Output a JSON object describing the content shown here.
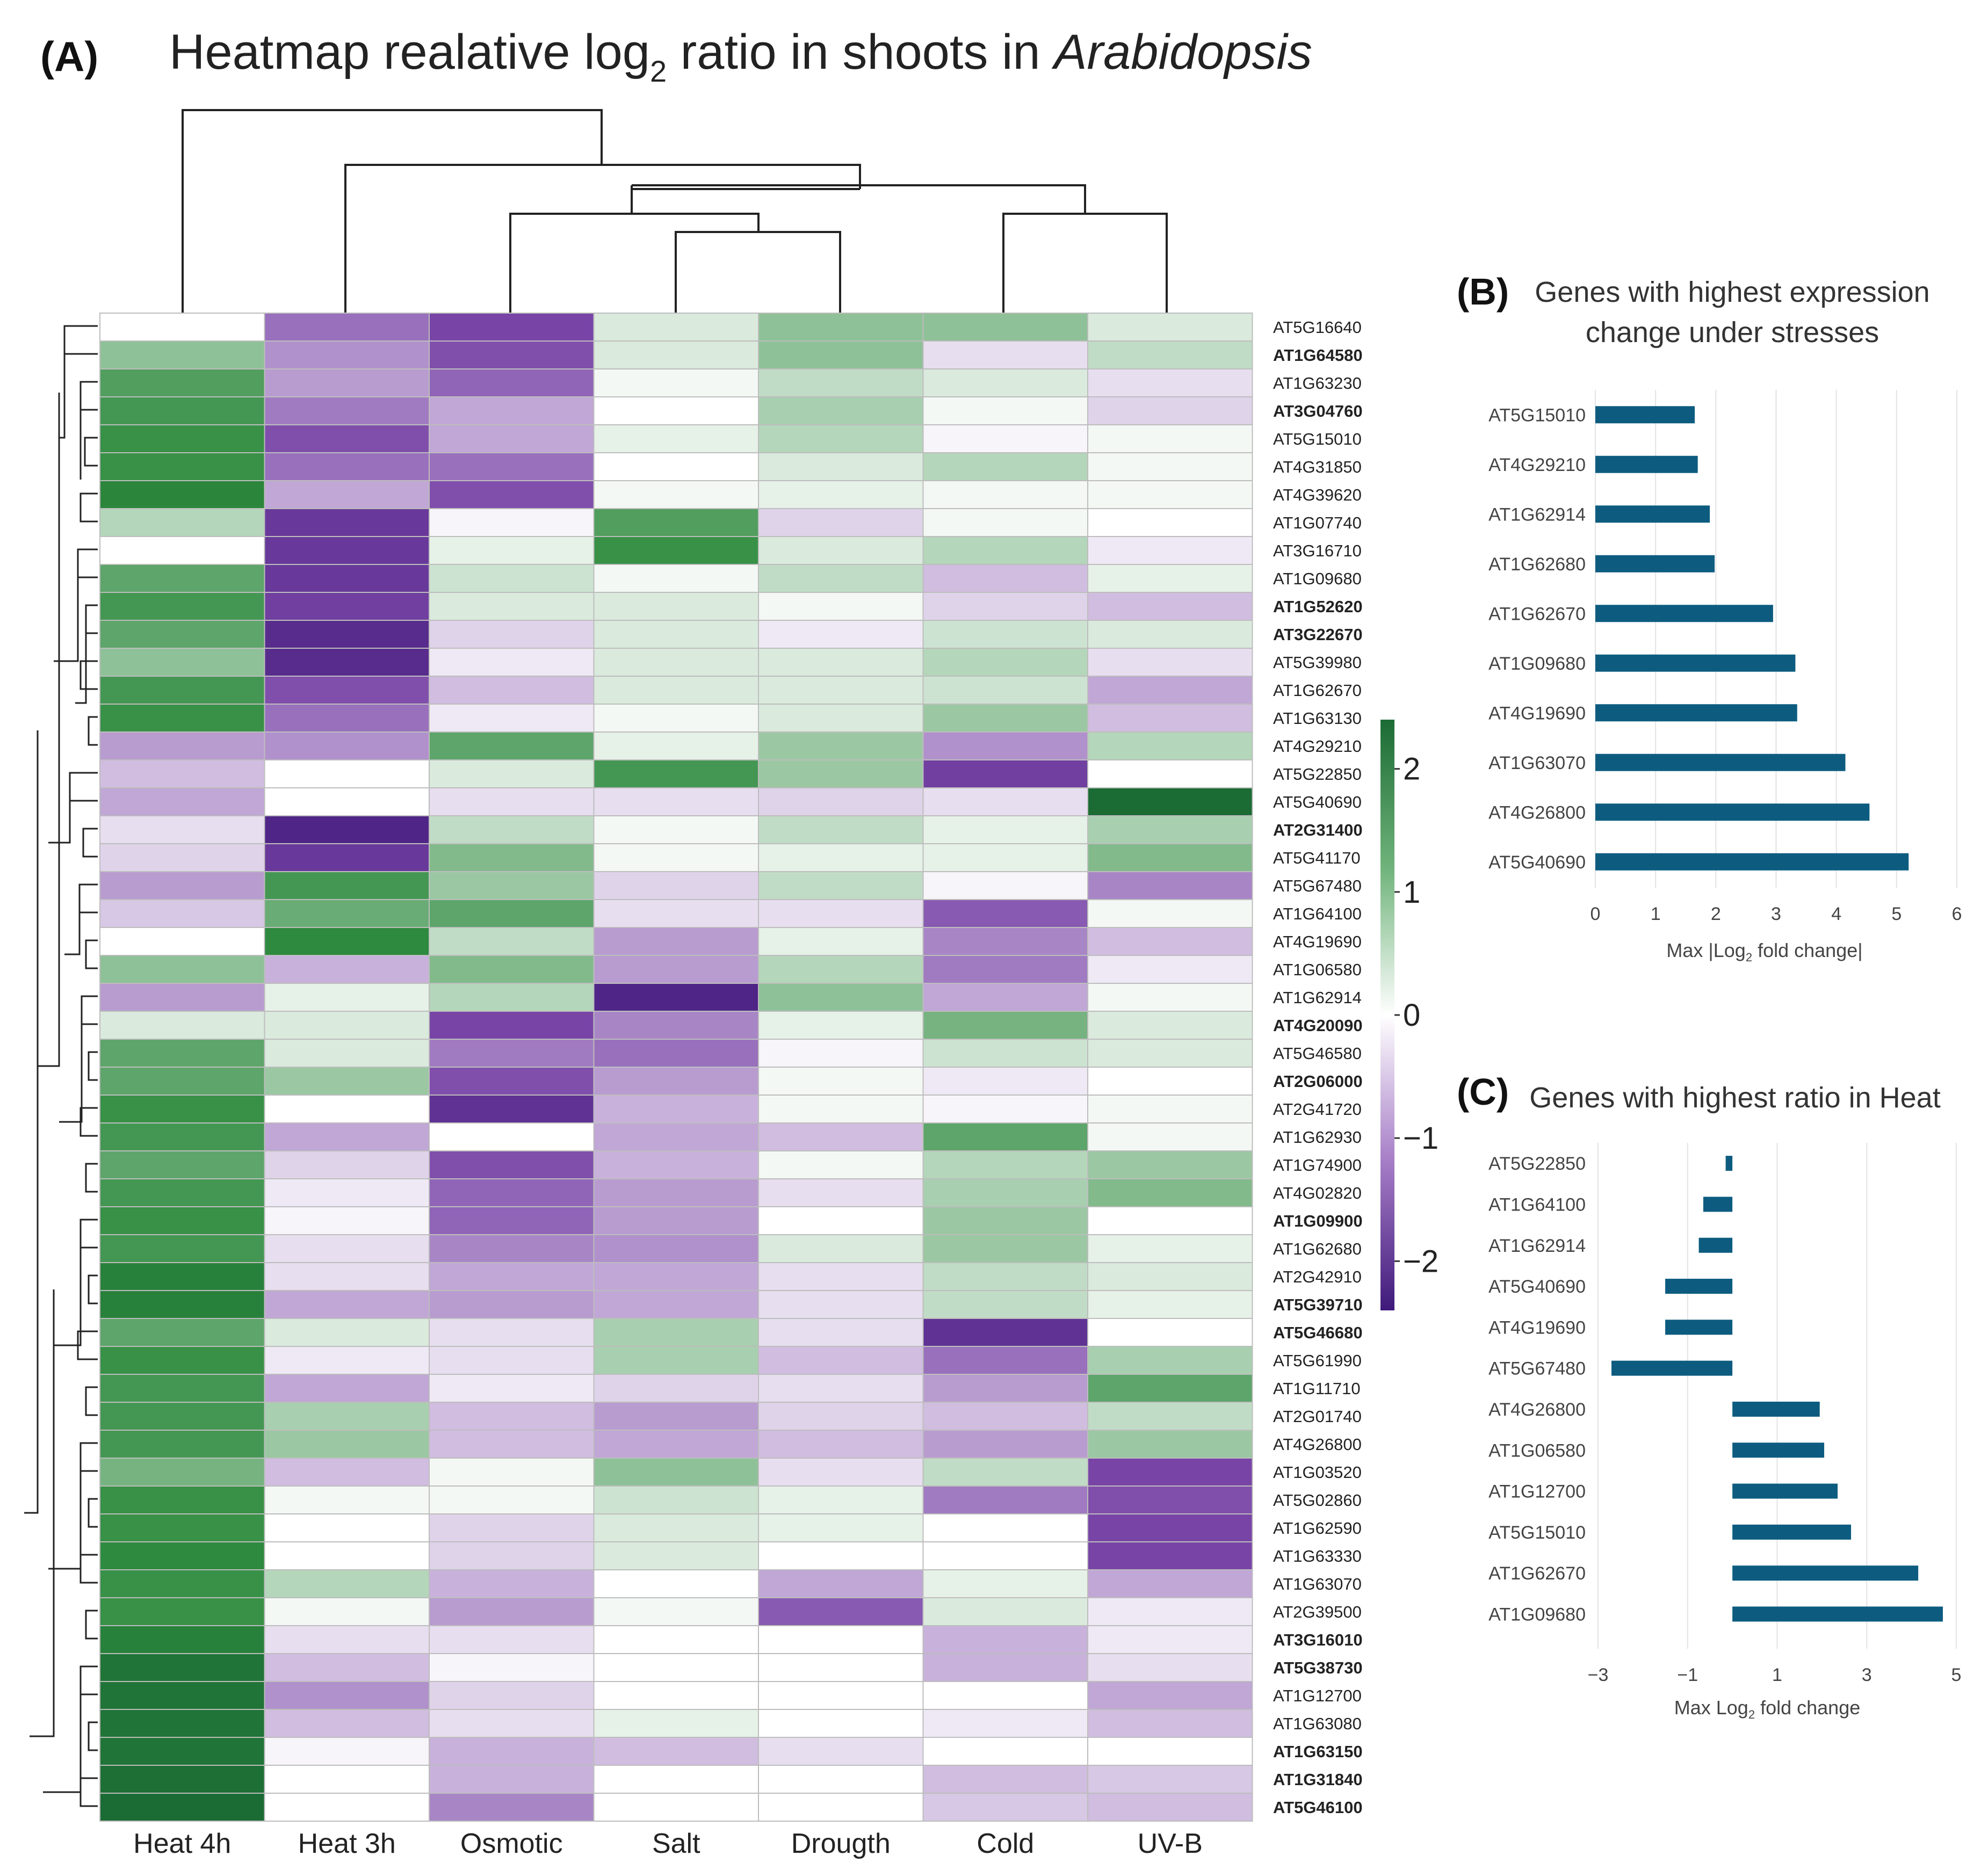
{
  "panel_a": {
    "label": "(A)",
    "title_prefix": "Heatmap realative log",
    "title_sub": "2",
    "title_mid": " ratio in shoots in ",
    "title_italic": "Arabidopsis"
  },
  "panel_b": {
    "label": "(B)",
    "title_line1": "Genes  with highest expression",
    "title_line2": "change under stresses",
    "xlabel_prefix": "Max |Log",
    "xlabel_sub": "2",
    "xlabel_suffix": " fold change|"
  },
  "panel_c": {
    "label": "(C)",
    "title_line1": "Genes  with highest ratio in Heat",
    "xlabel_prefix": "Max Log",
    "xlabel_sub": "2",
    "xlabel_suffix": " fold change"
  },
  "colors": {
    "bar": "#0d5c80",
    "green_dark": "#1b6b34",
    "green_mid": "#2e8b3e",
    "purple_dark": "#3f1a7a",
    "purple_mid": "#7a46a8",
    "white": "#ffffff",
    "grid": "#e3e3e3",
    "cell_border": "#bdbdbd"
  },
  "chart_data": [
    {
      "id": "heatmap",
      "type": "heatmap",
      "title": "Heatmap realative log2 ratio in shoots in Arabidopsis",
      "columns": [
        "Heat 4h",
        "Heat 3h",
        "Osmotic",
        "Salt",
        "Drougth",
        "Cold",
        "UV-B"
      ],
      "rows": [
        "AT5G16640",
        "AT1G64580",
        "AT1G63230",
        "AT3G04760",
        "AT5G15010",
        "AT4G31850",
        "AT4G39620",
        "AT1G07740",
        "AT3G16710",
        "AT1G09680",
        "AT1G52620",
        "AT3G22670",
        "AT5G39980",
        "AT1G62670",
        "AT1G63130",
        "AT4G29210",
        "AT5G22850",
        "AT5G40690",
        "AT2G31400",
        "AT5G41170",
        "AT5G67480",
        "AT1G64100",
        "AT4G19690",
        "AT1G06580",
        "AT1G62914",
        "AT4G20090",
        "AT5G46580",
        "AT2G06000",
        "AT2G41720",
        "AT1G62930",
        "AT1G74900",
        "AT4G02820",
        "AT1G09900",
        "AT1G62680",
        "AT2G42910",
        "AT5G39710",
        "AT5G46680",
        "AT5G61990",
        "AT1G11710",
        "AT2G01740",
        "AT4G26800",
        "AT1G03520",
        "AT5G02860",
        "AT1G62590",
        "AT1G63330",
        "AT1G63070",
        "AT2G39500",
        "AT3G16010",
        "AT5G38730",
        "AT1G12700",
        "AT1G63080",
        "AT1G63150",
        "AT1G31840",
        "AT5G46100"
      ],
      "bold_rows": [
        "AT1G64580",
        "AT3G04760",
        "AT1G52620",
        "AT3G22670",
        "AT2G31400",
        "AT4G20090",
        "AT2G06000",
        "AT1G09900",
        "AT5G39710",
        "AT5G46680",
        "AT3G16010",
        "AT5G38730",
        "AT1G63150",
        "AT1G31840",
        "AT5G46100"
      ],
      "values": [
        [
          0.0,
          -1.3,
          -1.7,
          0.3,
          0.9,
          0.9,
          0.3
        ],
        [
          0.9,
          -1.0,
          -1.6,
          0.3,
          0.9,
          -0.3,
          0.5
        ],
        [
          1.4,
          -0.9,
          -1.4,
          0.1,
          0.5,
          0.3,
          -0.3
        ],
        [
          1.5,
          -1.2,
          -0.8,
          0.0,
          0.7,
          0.1,
          -0.4
        ],
        [
          1.6,
          -1.6,
          -0.8,
          0.2,
          0.6,
          -0.1,
          0.1
        ],
        [
          1.6,
          -1.3,
          -1.3,
          0.0,
          0.3,
          0.6,
          0.1
        ],
        [
          1.8,
          -0.8,
          -1.6,
          0.1,
          0.2,
          0.1,
          0.1
        ],
        [
          0.6,
          -1.9,
          -0.1,
          1.4,
          -0.4,
          0.1,
          0.0
        ],
        [
          0.0,
          -1.9,
          0.2,
          1.6,
          0.3,
          0.6,
          -0.2
        ],
        [
          1.3,
          -1.9,
          0.4,
          0.1,
          0.5,
          -0.6,
          0.2
        ],
        [
          1.5,
          -1.8,
          0.3,
          0.3,
          0.1,
          -0.4,
          -0.6
        ],
        [
          1.3,
          -2.1,
          -0.4,
          0.3,
          -0.2,
          0.4,
          0.3
        ],
        [
          0.9,
          -2.1,
          -0.2,
          0.3,
          0.3,
          0.6,
          -0.3
        ],
        [
          1.5,
          -1.6,
          -0.6,
          0.3,
          0.3,
          0.4,
          -0.8
        ],
        [
          1.6,
          -1.3,
          -0.2,
          0.1,
          0.3,
          0.8,
          -0.6
        ],
        [
          -0.9,
          -1.0,
          1.3,
          0.2,
          0.8,
          -1.0,
          0.6
        ],
        [
          -0.6,
          0.0,
          0.3,
          1.5,
          0.8,
          -1.8,
          0.0
        ],
        [
          -0.8,
          0.0,
          -0.3,
          -0.3,
          -0.4,
          -0.3,
          2.4
        ],
        [
          -0.3,
          -2.2,
          0.5,
          0.1,
          0.5,
          0.2,
          0.7
        ],
        [
          -0.4,
          -1.9,
          1.0,
          0.1,
          0.2,
          0.2,
          1.0
        ],
        [
          -0.9,
          1.5,
          0.8,
          -0.4,
          0.5,
          -0.1,
          -1.1
        ],
        [
          -0.5,
          1.2,
          1.3,
          -0.3,
          -0.3,
          -1.5,
          0.1
        ],
        [
          0.0,
          1.7,
          0.5,
          -0.9,
          0.2,
          -1.1,
          -0.6
        ],
        [
          0.9,
          -0.7,
          1.0,
          -0.9,
          0.6,
          -1.2,
          -0.2
        ],
        [
          -0.9,
          0.2,
          0.6,
          -2.2,
          0.9,
          -0.8,
          0.1
        ],
        [
          0.3,
          0.3,
          -1.7,
          -1.1,
          0.2,
          1.1,
          0.3
        ],
        [
          1.3,
          0.3,
          -1.2,
          -1.3,
          -0.1,
          0.4,
          0.3
        ],
        [
          1.3,
          0.8,
          -1.6,
          -0.9,
          0.1,
          -0.2,
          0.0
        ],
        [
          1.6,
          0.0,
          -2.0,
          -0.7,
          0.1,
          -0.1,
          0.1
        ],
        [
          1.5,
          -0.8,
          0.0,
          -0.8,
          -0.6,
          1.3,
          0.1
        ],
        [
          1.3,
          -0.4,
          -1.6,
          -0.7,
          0.1,
          0.6,
          0.8
        ],
        [
          1.5,
          -0.2,
          -1.4,
          -0.9,
          -0.3,
          0.7,
          1.0
        ],
        [
          1.6,
          -0.1,
          -1.4,
          -0.9,
          0.0,
          0.8,
          0.0
        ],
        [
          1.5,
          -0.3,
          -1.1,
          -1.0,
          0.3,
          0.8,
          0.2
        ],
        [
          1.9,
          -0.3,
          -0.8,
          -0.8,
          -0.3,
          0.5,
          0.3
        ],
        [
          1.9,
          -0.8,
          -0.9,
          -0.8,
          -0.3,
          0.5,
          0.2
        ],
        [
          1.3,
          0.3,
          -0.3,
          0.7,
          -0.3,
          -2.0,
          0.0
        ],
        [
          1.6,
          -0.2,
          -0.3,
          0.7,
          -0.6,
          -1.3,
          0.7
        ],
        [
          1.5,
          -0.8,
          -0.2,
          -0.4,
          -0.3,
          -0.9,
          1.3
        ],
        [
          1.5,
          0.7,
          -0.6,
          -0.9,
          -0.4,
          -0.6,
          0.5
        ],
        [
          1.5,
          0.8,
          -0.6,
          -0.8,
          -0.6,
          -0.9,
          0.8
        ],
        [
          1.1,
          -0.6,
          0.1,
          0.9,
          -0.3,
          0.5,
          -1.7
        ],
        [
          1.6,
          0.1,
          0.1,
          0.4,
          0.2,
          -1.2,
          -1.6
        ],
        [
          1.6,
          0.0,
          -0.4,
          0.3,
          0.2,
          0.0,
          -1.7
        ],
        [
          1.7,
          0.0,
          -0.4,
          0.3,
          0.0,
          0.0,
          -1.7
        ],
        [
          1.6,
          0.6,
          -0.7,
          0.0,
          -0.8,
          0.2,
          -0.8
        ],
        [
          1.6,
          0.1,
          -0.9,
          0.1,
          -1.5,
          0.3,
          -0.2
        ],
        [
          1.9,
          -0.3,
          -0.3,
          0.0,
          0.0,
          -0.7,
          -0.2
        ],
        [
          2.2,
          -0.6,
          -0.1,
          0.0,
          0.0,
          -0.7,
          -0.3
        ],
        [
          2.2,
          -1.0,
          -0.4,
          0.0,
          0.0,
          0.0,
          -0.8
        ],
        [
          2.2,
          -0.6,
          -0.3,
          0.2,
          0.0,
          -0.2,
          -0.6
        ],
        [
          2.2,
          -0.1,
          -0.7,
          -0.6,
          -0.3,
          0.0,
          0.0
        ],
        [
          2.3,
          0.0,
          -0.7,
          0.0,
          0.0,
          -0.6,
          -0.5
        ],
        [
          2.4,
          0.0,
          -1.1,
          0.0,
          0.0,
          -0.5,
          -0.6
        ]
      ],
      "colorbar_ticks": [
        2,
        1,
        0,
        -1,
        -2
      ],
      "colorbar_tick_labels": [
        "2",
        "1",
        "0",
        "−1",
        "−2"
      ],
      "colorbar_range": [
        -2.4,
        2.4
      ]
    },
    {
      "id": "bars_b",
      "type": "bar",
      "orientation": "horizontal",
      "title": "Genes  with highest expression change under stresses",
      "categories": [
        "AT5G15010",
        "AT4G29210",
        "AT1G62914",
        "AT1G62680",
        "AT1G62670",
        "AT1G09680",
        "AT4G19690",
        "AT1G63070",
        "AT4G26800",
        "AT5G40690"
      ],
      "values": [
        1.65,
        1.7,
        1.9,
        1.98,
        2.95,
        3.32,
        3.35,
        4.15,
        4.55,
        5.2
      ],
      "xlim": [
        0,
        6
      ],
      "xticks": [
        0,
        1,
        2,
        3,
        4,
        5,
        6
      ],
      "xtick_labels": [
        "0",
        "1",
        "2",
        "3",
        "4",
        "5",
        "6"
      ],
      "xlabel": "Max |Log2 fold change|"
    },
    {
      "id": "bars_c",
      "type": "bar",
      "orientation": "horizontal",
      "title": "Genes  with highest ratio in Heat",
      "categories": [
        "AT5G22850",
        "AT1G64100",
        "AT1G62914",
        "AT5G40690",
        "AT4G19690",
        "AT5G67480",
        "AT4G26800",
        "AT1G06580",
        "AT1G12700",
        "AT5G15010",
        "AT1G62670",
        "AT1G09680"
      ],
      "values": [
        -0.15,
        -0.65,
        -0.75,
        -1.5,
        -1.5,
        -2.7,
        1.95,
        2.05,
        2.35,
        2.65,
        4.15,
        4.7
      ],
      "xlim": [
        -3,
        5
      ],
      "xticks": [
        -3,
        -1,
        1,
        3,
        5
      ],
      "xtick_labels": [
        "−3",
        "−1",
        "1",
        "3",
        "5"
      ],
      "xlabel": "Max Log2 fold change"
    }
  ]
}
